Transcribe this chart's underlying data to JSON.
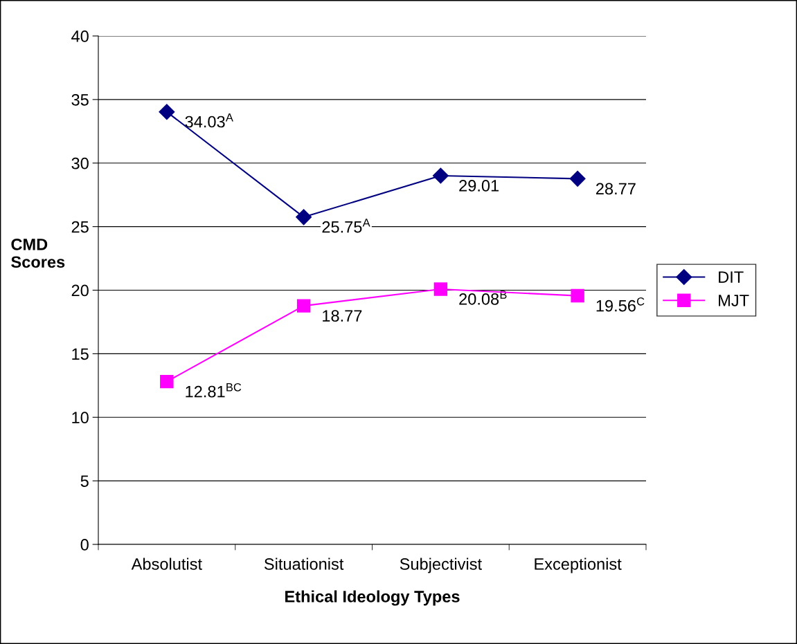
{
  "chart_data": {
    "type": "line",
    "xlabel": "Ethical Ideology Types",
    "ylabel": "CMD\nScores",
    "categories": [
      "Absolutist",
      "Situationist",
      "Subjectivist",
      "Exceptionist"
    ],
    "series": [
      {
        "name": "DIT",
        "color": "#000080",
        "marker": "diamond",
        "values": [
          34.03,
          25.75,
          29.01,
          28.77
        ],
        "value_labels": [
          "34.03$^{A}$",
          "25.75$^{A}$",
          "29.01",
          "28.77"
        ]
      },
      {
        "name": "MJT",
        "color": "#ff00ff",
        "marker": "square",
        "values": [
          12.81,
          18.77,
          20.08,
          19.56
        ],
        "value_labels": [
          "12.81$^{BC}$",
          "18.77",
          "20.08$^{B}$",
          "19.56$^{C}$"
        ]
      }
    ],
    "ylim": [
      0,
      40
    ],
    "yticks": [
      0,
      5,
      10,
      15,
      20,
      25,
      30,
      35,
      40
    ],
    "grid": "y",
    "legend": "right",
    "line_style": "solid"
  }
}
